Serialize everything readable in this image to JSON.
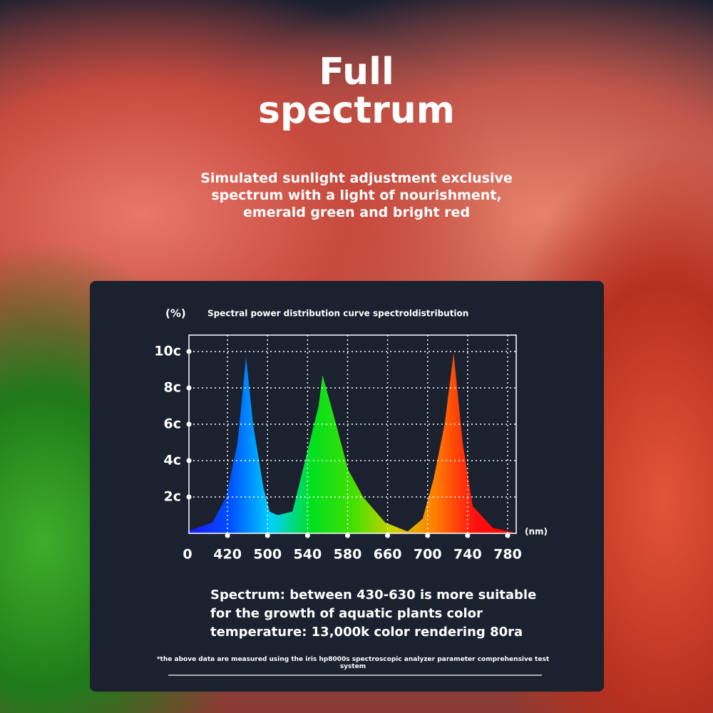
{
  "header": {
    "title": "Full spectrum",
    "subtitle": "Simulated sunlight adjustment exclusive spectrum with a light of nourishment, emerald green and bright red"
  },
  "chart_data": {
    "type": "area",
    "title": "Spectral power distribution curve spectroldistribution",
    "y_unit": "(%)",
    "x_unit": "(nm)",
    "x": [
      0,
      263,
      406,
      440,
      457,
      471,
      492,
      502,
      510,
      525,
      533,
      551,
      555,
      566,
      581,
      611,
      655,
      680,
      695,
      706,
      717,
      726,
      735,
      745,
      765,
      790
    ],
    "values": [
      0.1,
      0.6,
      2,
      5,
      9.7,
      6,
      2.5,
      1.2,
      1.0,
      1.2,
      3,
      7,
      8.7,
      6.5,
      3.5,
      2,
      0.6,
      0.1,
      0.8,
      3,
      6,
      9.9,
      5,
      1.5,
      0.3,
      0
    ],
    "colors": [
      "#1a1aff",
      "#0050ff",
      "#00d0ff",
      "#00e020",
      "#40e000",
      "#d0d000",
      "#ff8000",
      "#ff1010",
      "#ff0000"
    ],
    "xlim": [
      0,
      790
    ],
    "ylim": [
      0,
      10.9
    ],
    "xticks": [
      0,
      420,
      500,
      540,
      580,
      660,
      700,
      740,
      780
    ],
    "yticks": [
      {
        "value": 2,
        "label": "2c"
      },
      {
        "value": 4,
        "label": "4c"
      },
      {
        "value": 6,
        "label": "6c"
      },
      {
        "value": 8,
        "label": "8c"
      },
      {
        "value": 10,
        "label": "10c"
      }
    ],
    "grid": true
  },
  "description": "Spectrum: between 430-630 is more suitable for the growth of aquatic plants color temperature: 13,000k color rendering 80ra",
  "footnote": "*the above data are measured using the iris hp8000s spectroscopic analyzer parameter comprehensive test system"
}
